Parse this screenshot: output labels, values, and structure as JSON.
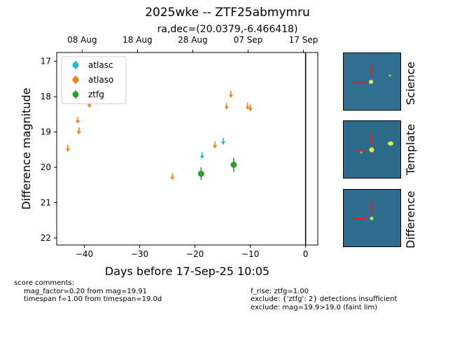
{
  "header": {
    "title": "2025wke -- ZTF25abmymru",
    "subtitle": "ra,dec=(20.0379,-6.466418)"
  },
  "chart_data": {
    "type": "scatter",
    "xlabel": "Days before 17-Sep-25 10:05",
    "ylabel": "Difference magnitude",
    "xlim": [
      -45,
      2.2
    ],
    "ylim": [
      22.2,
      16.75
    ],
    "y_inverted": true,
    "x_ticks": [
      -40,
      -30,
      -20,
      -10,
      0
    ],
    "y_ticks": [
      17,
      18,
      19,
      20,
      21,
      22
    ],
    "top_axis_ticks": [
      {
        "label": "08 Aug",
        "x": -40.4
      },
      {
        "label": "18 Aug",
        "x": -30.4
      },
      {
        "label": "28 Aug",
        "x": -20.4
      },
      {
        "label": "07 Sep",
        "x": -10.4
      },
      {
        "label": "17 Sep",
        "x": -0.4
      }
    ],
    "reference_line_x": 0,
    "legend": {
      "placement": "top-left"
    },
    "series": [
      {
        "name": "atlasc",
        "color": "#17becf",
        "upper_limits": [
          {
            "x": -18.7,
            "y": 19.65
          },
          {
            "x": -14.9,
            "y": 19.25
          }
        ],
        "detections": []
      },
      {
        "name": "atlaso",
        "color": "#ff7f0e",
        "upper_limits": [
          {
            "x": -43.0,
            "y": 19.45
          },
          {
            "x": -41.2,
            "y": 18.65
          },
          {
            "x": -41.0,
            "y": 18.95
          },
          {
            "x": -39.1,
            "y": 18.2
          },
          {
            "x": -24.1,
            "y": 20.25
          },
          {
            "x": -16.4,
            "y": 19.35
          },
          {
            "x": -14.3,
            "y": 18.25
          },
          {
            "x": -13.5,
            "y": 17.92
          },
          {
            "x": -10.5,
            "y": 18.25
          },
          {
            "x": -10.0,
            "y": 18.3
          }
        ],
        "detections": []
      },
      {
        "name": "ztfg",
        "color": "#2ca02c",
        "upper_limits": [],
        "detections": [
          {
            "x": -18.9,
            "y": 20.18,
            "err": 0.18
          },
          {
            "x": -13.0,
            "y": 19.93,
            "err": 0.2
          }
        ]
      }
    ]
  },
  "stamps": [
    {
      "label": "Science"
    },
    {
      "label": "Template"
    },
    {
      "label": "Difference"
    }
  ],
  "comments": {
    "heading": "score comments:",
    "left": [
      "mag_factor=0.20 from mag=19.91",
      "timespan f=1.00 from timespan=19.0d"
    ],
    "right": [
      "f_rise: ztfg=1.00",
      "exclude: {'ztfg': 2} detections insufficient",
      "exclude: mag=19.9>19.0 (faint lim)"
    ]
  }
}
